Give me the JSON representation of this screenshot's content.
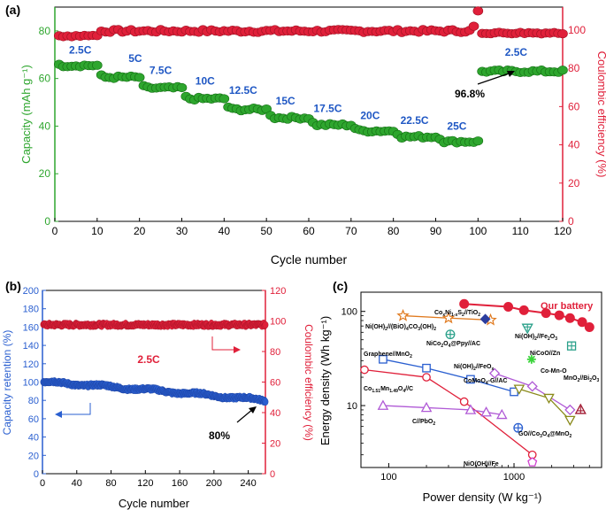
{
  "figure": {
    "panels": [
      "(a)",
      "(b)",
      "(c)"
    ]
  },
  "colors": {
    "green": "#2ea62e",
    "green_dark": "#1e7a1e",
    "red": "#e0203a",
    "blue": "#2a5fd0",
    "axis_blue": "#2a5fd0",
    "label_blue": "#1f57c4",
    "purple": "#b05ad6",
    "orange": "#e07a1f",
    "teal": "#2aa08a",
    "navy": "#2b3d9e",
    "olive": "#8a8a1a",
    "dark_red": "#a01830",
    "pink_magenta": "#d040d0",
    "bright_green": "#3ad43a"
  },
  "chart_data": [
    {
      "panel": "(a)",
      "type": "scatter",
      "xlabel": "Cycle number",
      "ylabel_left": "Capacity (mAh g⁻¹)",
      "ylabel_right": "Coulombic efficiency (%)",
      "xlim": [
        0,
        120
      ],
      "ylim_left": [
        0,
        90
      ],
      "ylim_right": [
        0,
        112
      ],
      "xticks": [
        0,
        10,
        20,
        30,
        40,
        50,
        60,
        70,
        80,
        90,
        100,
        110,
        120
      ],
      "yticks_left": [
        0,
        20,
        40,
        60,
        80
      ],
      "yticks_right": [
        0,
        20,
        40,
        60,
        80,
        100
      ],
      "rate_steps": [
        {
          "label": "2.5C",
          "start": 1,
          "end": 10,
          "capacity": 65.5
        },
        {
          "label": "5C",
          "start": 11,
          "end": 20,
          "capacity": 60.5
        },
        {
          "label": "7.5C",
          "start": 21,
          "end": 30,
          "capacity": 56.0
        },
        {
          "label": "10C",
          "start": 31,
          "end": 40,
          "capacity": 51.5
        },
        {
          "label": "12.5C",
          "start": 41,
          "end": 50,
          "capacity": 47.0
        },
        {
          "label": "15C",
          "start": 51,
          "end": 60,
          "capacity": 43.5
        },
        {
          "label": "17.5C",
          "start": 61,
          "end": 70,
          "capacity": 40.5
        },
        {
          "label": "20C",
          "start": 71,
          "end": 80,
          "capacity": 38.0
        },
        {
          "label": "22.5C",
          "start": 81,
          "end": 90,
          "capacity": 35.5
        },
        {
          "label": "25C",
          "start": 91,
          "end": 100,
          "capacity": 33.5
        },
        {
          "label": "2.5C",
          "start": 101,
          "end": 120,
          "capacity": 63.0
        }
      ],
      "efficiency": {
        "first_cycle": 97,
        "typical": 99.5,
        "cycle_99": 102,
        "cycle_100": 110,
        "after": 98.5
      },
      "annotation": "96.8%"
    },
    {
      "panel": "(b)",
      "type": "scatter",
      "xlabel": "Cycle number",
      "ylabel_left": "Capacity retention (%)",
      "ylabel_right": "Coulombic efficiency (%)",
      "xlim": [
        0,
        260
      ],
      "ylim_left": [
        0,
        200
      ],
      "ylim_right": [
        0,
        120
      ],
      "xticks": [
        0,
        40,
        80,
        120,
        160,
        200,
        240
      ],
      "yticks_left": [
        0,
        20,
        40,
        60,
        80,
        100,
        120,
        140,
        160,
        180,
        200
      ],
      "yticks_right": [
        0,
        20,
        40,
        60,
        80,
        100,
        120
      ],
      "retention_start": 100,
      "retention_end": 80,
      "efficiency_level": 97.5,
      "rate_label": "2.5C",
      "annotation": "80%"
    },
    {
      "panel": "(c)",
      "type": "line",
      "xlabel": "Power density (W kg⁻¹)",
      "ylabel": "Energy density (Wh kg⁻¹)",
      "xscale": "log",
      "yscale": "log",
      "xlim": [
        60,
        5000
      ],
      "ylim": [
        2.2,
        160
      ],
      "xticks": [
        100,
        1000
      ],
      "xtick_labels": [
        "100",
        "1000"
      ],
      "yticks": [
        10,
        100
      ],
      "ytick_labels": [
        "10",
        "100"
      ],
      "series": [
        {
          "name": "Our battery",
          "marker": "circle-filled",
          "color": "#e0203a",
          "x": [
            400,
            900,
            1200,
            1800,
            2300,
            2800,
            3500,
            4000
          ],
          "y": [
            120,
            112,
            103,
            96,
            91,
            85,
            77,
            68
          ]
        },
        {
          "name": "Graphene//MnO₂",
          "marker": "square",
          "color": "#2a5fd0",
          "x": [
            90,
            200,
            450,
            1000
          ],
          "y": [
            31,
            25,
            19,
            14
          ]
        },
        {
          "name": "Co₁.₅₁Mn₁.₄₉O₄//C",
          "marker": "circle",
          "color": "#e0203a",
          "x": [
            64,
            200,
            400,
            1400
          ],
          "y": [
            24,
            20,
            11,
            3
          ]
        },
        {
          "name": "C//PbO₂",
          "marker": "triangle-up",
          "color": "#b05ad6",
          "x": [
            90,
            200,
            450,
            600,
            800
          ],
          "y": [
            10,
            9.5,
            9,
            8.5,
            8
          ]
        },
        {
          "name": "Ni(OH)₂//FeOₓ",
          "marker": "diamond",
          "color": "#b05ad6",
          "x": [
            700,
            1400,
            2800
          ],
          "y": [
            22,
            16,
            9
          ]
        },
        {
          "name": "CoMoO₄-G//AC",
          "marker": "triangle-down",
          "color": "#8a8a1a",
          "x": [
            1100,
            1900,
            2800
          ],
          "y": [
            15,
            12,
            7
          ]
        },
        {
          "name": "Ni(OH)₂//(BiO)₄CO₃(OH)₂",
          "marker": "star",
          "color": "#e07a1f",
          "x": [
            130,
            300,
            650
          ],
          "y": [
            90,
            85,
            81
          ]
        },
        {
          "name": "CoₓNi₁₋ₓS₂//TiO₂",
          "marker": "diamond-filled",
          "color": "#2b3d9e",
          "x": [
            590
          ],
          "y": [
            83
          ]
        },
        {
          "name": "NiCo₂O₄@Ppy//AC",
          "marker": "circle-plus",
          "color": "#2aa08a",
          "x": [
            310
          ],
          "y": [
            57
          ]
        },
        {
          "name": "Ni(OH)₂//Fe₂O₃",
          "marker": "triangle-down-cross",
          "color": "#2aa08a",
          "x": [
            1280
          ],
          "y": [
            67
          ]
        },
        {
          "name": "NiCoO//Zn",
          "marker": "square-plus",
          "color": "#2aa08a",
          "x": [
            2880
          ],
          "y": [
            43
          ]
        },
        {
          "name": "Co-Mn-O",
          "marker": "asterisk",
          "color": "#3ad43a",
          "x": [
            1380
          ],
          "y": [
            31
          ]
        },
        {
          "name": "MnO₂//Bi₂O₃",
          "marker": "triangle-up-cross",
          "color": "#a01830",
          "x": [
            3400
          ],
          "y": [
            9
          ]
        },
        {
          "name": "GO//Co₃O₄@MnO₂",
          "marker": "circle-plus",
          "color": "#2a5fd0",
          "x": [
            1080
          ],
          "y": [
            5.8
          ]
        },
        {
          "name": "NiO(OH)//Fe",
          "marker": "pentagon",
          "color": "#d040d0",
          "x": [
            1400
          ],
          "y": [
            2.5
          ]
        }
      ]
    }
  ],
  "labels_c": {
    "our_battery": "Our battery",
    "graphene": "Graphene//MnO",
    "graphene_sub": "2",
    "co_mn": "Co",
    "bipb": "C//PbO",
    "nioh_feox": "Ni(OH)",
    "comoo4": "CoMoO",
    "nioh_bio": "Ni(OH)",
    "coni": "Co",
    "nico2o4": "NiCo",
    "nioh_fe2o3": "Ni(OH)",
    "nicoo_zn": "NiCoO//Zn",
    "comno": "Co-Mn-O",
    "mno2_bi2o3": "MnO",
    "go_co3o4": "GO//Co",
    "nioohfe": "NiO(OH)//Fe"
  }
}
